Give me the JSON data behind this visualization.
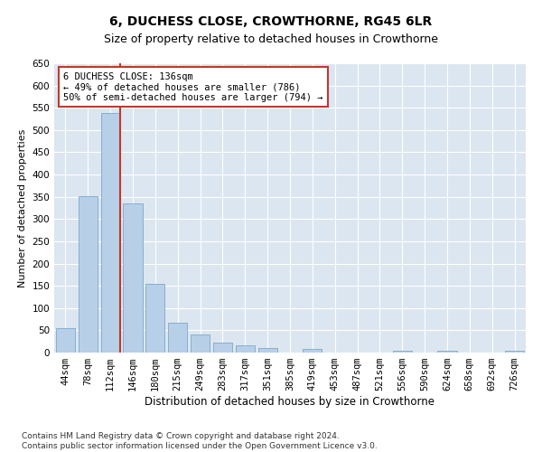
{
  "title": "6, DUCHESS CLOSE, CROWTHORNE, RG45 6LR",
  "subtitle": "Size of property relative to detached houses in Crowthorne",
  "xlabel": "Distribution of detached houses by size in Crowthorne",
  "ylabel": "Number of detached properties",
  "categories": [
    "44sqm",
    "78sqm",
    "112sqm",
    "146sqm",
    "180sqm",
    "215sqm",
    "249sqm",
    "283sqm",
    "317sqm",
    "351sqm",
    "385sqm",
    "419sqm",
    "453sqm",
    "487sqm",
    "521sqm",
    "556sqm",
    "590sqm",
    "624sqm",
    "658sqm",
    "692sqm",
    "726sqm"
  ],
  "values": [
    55,
    352,
    538,
    335,
    155,
    68,
    40,
    22,
    17,
    10,
    0,
    9,
    0,
    0,
    0,
    4,
    0,
    4,
    0,
    0,
    4
  ],
  "bar_color": "#b8cfe8",
  "bar_edge_color": "#6b9ec8",
  "vline_color": "#c0392b",
  "annotation_text": "6 DUCHESS CLOSE: 136sqm\n← 49% of detached houses are smaller (786)\n50% of semi-detached houses are larger (794) →",
  "annotation_box_color": "white",
  "annotation_box_edge": "#c0392b",
  "ylim": [
    0,
    650
  ],
  "yticks": [
    0,
    50,
    100,
    150,
    200,
    250,
    300,
    350,
    400,
    450,
    500,
    550,
    600,
    650
  ],
  "background_color": "#dce6f0",
  "footer_text": "Contains HM Land Registry data © Crown copyright and database right 2024.\nContains public sector information licensed under the Open Government Licence v3.0.",
  "title_fontsize": 10,
  "subtitle_fontsize": 9,
  "xlabel_fontsize": 8.5,
  "ylabel_fontsize": 8,
  "annotation_fontsize": 7.5,
  "footer_fontsize": 6.5,
  "tick_fontsize": 7.5
}
